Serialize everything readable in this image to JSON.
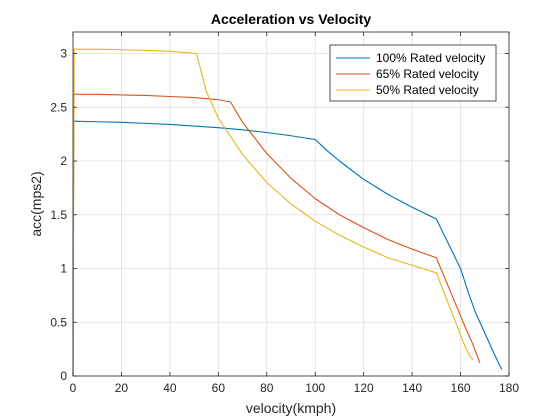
{
  "chart_data": {
    "type": "line",
    "title": "Acceleration vs Velocity",
    "xlabel": "velocity(kmph)",
    "ylabel": "acc(mps2)",
    "xlim": [
      0,
      180
    ],
    "ylim": [
      0,
      3.2
    ],
    "xticks": [
      0,
      20,
      40,
      60,
      80,
      100,
      120,
      140,
      160,
      180
    ],
    "yticks": [
      0,
      0.5,
      1,
      1.5,
      2,
      2.5,
      3
    ],
    "ytick_labels": [
      "0",
      "0.5",
      "1",
      "1.5",
      "2",
      "2.5",
      "3"
    ],
    "grid": true,
    "legend_position": "top-right",
    "series": [
      {
        "name": "100% Rated velocity",
        "color": "#0072BD",
        "x": [
          0,
          0.3,
          10,
          20,
          30,
          40,
          50,
          60,
          70,
          80,
          90,
          100,
          105,
          110,
          120,
          130,
          140,
          150,
          160,
          163,
          166,
          170,
          174,
          177
        ],
        "y": [
          0,
          2.37,
          2.365,
          2.36,
          2.35,
          2.34,
          2.325,
          2.31,
          2.29,
          2.265,
          2.235,
          2.2,
          2.095,
          2.0,
          1.83,
          1.69,
          1.57,
          1.46,
          1.0,
          0.79,
          0.6,
          0.4,
          0.2,
          0.06
        ]
      },
      {
        "name": "65% Rated velocity",
        "color": "#D95319",
        "x": [
          0,
          0.3,
          10,
          20,
          30,
          40,
          50,
          60,
          65,
          70,
          80,
          90,
          100,
          110,
          120,
          130,
          140,
          150,
          160,
          162,
          165,
          168
        ],
        "y": [
          0,
          2.62,
          2.62,
          2.615,
          2.61,
          2.6,
          2.59,
          2.57,
          2.55,
          2.36,
          2.07,
          1.84,
          1.65,
          1.5,
          1.38,
          1.27,
          1.18,
          1.1,
          0.56,
          0.45,
          0.3,
          0.12
        ]
      },
      {
        "name": "50% Rated velocity",
        "color": "#EDB120",
        "x": [
          0,
          0.5,
          10,
          20,
          30,
          40,
          51,
          55,
          60,
          70,
          80,
          90,
          100,
          110,
          120,
          130,
          140,
          150,
          159,
          161,
          163,
          165
        ],
        "y": [
          0,
          3.04,
          3.04,
          3.035,
          3.03,
          3.02,
          3.0,
          2.65,
          2.4,
          2.06,
          1.8,
          1.6,
          1.44,
          1.31,
          1.2,
          1.1,
          1.03,
          0.96,
          0.44,
          0.32,
          0.22,
          0.15
        ]
      }
    ]
  }
}
